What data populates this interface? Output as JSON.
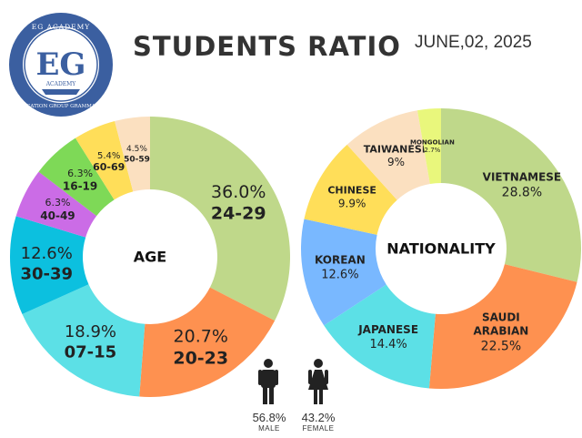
{
  "header": {
    "title": "STUDENTS RATIO",
    "date": "JUNE,02, 2025"
  },
  "logo": {
    "initials": "EG",
    "top_text": "EG ACADEMY",
    "sub_text": "ACADEMY",
    "ring_text": "EDUCATION GROUP GRAMMA INC"
  },
  "gender": {
    "male": {
      "percent": "56.8%",
      "label": "MALE",
      "icon": "male-person-icon"
    },
    "female": {
      "percent": "43.2%",
      "label": "FEMALE",
      "icon": "female-person-icon"
    }
  },
  "chart_data": [
    {
      "type": "pie",
      "title": "AGE",
      "slices": [
        {
          "label": "24-29",
          "value": 36.0,
          "display": "36.0%",
          "color": "#bfd88a"
        },
        {
          "label": "20-23",
          "value": 20.7,
          "display": "20.7%",
          "color": "#fe9150"
        },
        {
          "label": "07-15",
          "value": 18.9,
          "display": "18.9%",
          "color": "#5ce0e6"
        },
        {
          "label": "30-39",
          "value": 12.6,
          "display": "12.6%",
          "color": "#0cc0df"
        },
        {
          "label": "40-49",
          "value": 6.3,
          "display": "6.3%",
          "color": "#cb6ce6"
        },
        {
          "label": "16-19",
          "value": 6.3,
          "display": "6.3%",
          "color": "#7ed957"
        },
        {
          "label": "60-69",
          "value": 5.4,
          "display": "5.4%",
          "color": "#ffde59"
        },
        {
          "label": "50-59",
          "value": 4.5,
          "display": "4.5%",
          "color": "#fbe0c0"
        }
      ]
    },
    {
      "type": "pie",
      "title": "NATIONALITY",
      "slices": [
        {
          "label": "VIETNAMESE",
          "value": 28.8,
          "display": "28.8%",
          "color": "#bfd88a"
        },
        {
          "label": "SAUDI ARABIAN",
          "value": 22.5,
          "display": "22.5%",
          "color": "#fe9150"
        },
        {
          "label": "JAPANESE",
          "value": 14.4,
          "display": "14.4%",
          "color": "#5ce0e6"
        },
        {
          "label": "KOREAN",
          "value": 12.6,
          "display": "12.6%",
          "color": "#79b8ff"
        },
        {
          "label": "CHINESE",
          "value": 9.9,
          "display": "9.9%",
          "color": "#ffde59"
        },
        {
          "label": "TAIWANESE",
          "value": 9,
          "display": "9%",
          "color": "#fbe0c0"
        },
        {
          "label": "MONGOLIAN",
          "value": 2.7,
          "display": "2.7%",
          "color": "#e9f77c"
        }
      ]
    }
  ]
}
